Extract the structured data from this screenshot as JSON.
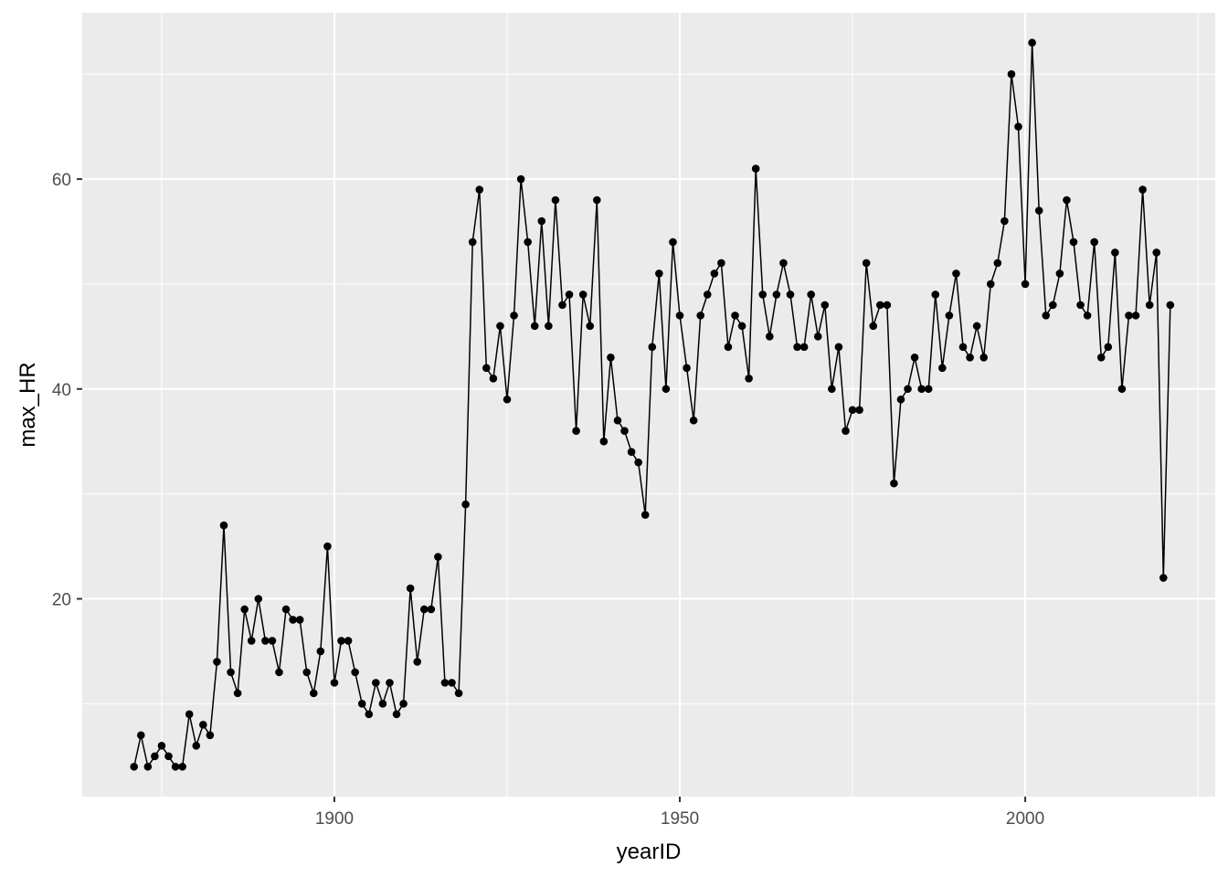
{
  "chart_data": {
    "type": "line",
    "title": "",
    "xlabel": "yearID",
    "ylabel": "max_HR",
    "xlim": [
      1863.5,
      2027.5
    ],
    "ylim": [
      1.15,
      75.85
    ],
    "x_ticks": [
      1900,
      1950,
      2000
    ],
    "x_tick_labels": [
      "1900",
      "1950",
      "2000"
    ],
    "y_ticks": [
      20,
      40,
      60
    ],
    "y_tick_labels": [
      "20",
      "40",
      "60"
    ],
    "grid": true,
    "legend": "none",
    "colors": {
      "panel_background": "#ebebeb",
      "grid_major": "#ffffff",
      "series": "#000000"
    },
    "series": [
      {
        "x": [
          1871,
          1872,
          1873,
          1874,
          1875,
          1876,
          1877,
          1878,
          1879,
          1880,
          1881,
          1882,
          1883,
          1884,
          1885,
          1886,
          1887,
          1888,
          1889,
          1890,
          1891,
          1892,
          1893,
          1894,
          1895,
          1896,
          1897,
          1898,
          1899,
          1900,
          1901,
          1902,
          1903,
          1904,
          1905,
          1906,
          1907,
          1908,
          1909,
          1910,
          1911,
          1912,
          1913,
          1914,
          1915,
          1916,
          1917,
          1918,
          1919,
          1920,
          1921,
          1922,
          1923,
          1924,
          1925,
          1926,
          1927,
          1928,
          1929,
          1930,
          1931,
          1932,
          1933,
          1934,
          1935,
          1936,
          1937,
          1938,
          1939,
          1940,
          1941,
          1942,
          1943,
          1944,
          1945,
          1946,
          1947,
          1948,
          1949,
          1950,
          1951,
          1952,
          1953,
          1954,
          1955,
          1956,
          1957,
          1958,
          1959,
          1960,
          1961,
          1962,
          1963,
          1964,
          1965,
          1966,
          1967,
          1968,
          1969,
          1970,
          1971,
          1972,
          1973,
          1974,
          1975,
          1976,
          1977,
          1978,
          1979,
          1980,
          1981,
          1982,
          1983,
          1984,
          1985,
          1986,
          1987,
          1988,
          1989,
          1990,
          1991,
          1992,
          1993,
          1994,
          1995,
          1996,
          1997,
          1998,
          1999,
          2000,
          2001,
          2002,
          2003,
          2004,
          2005,
          2006,
          2007,
          2008,
          2009,
          2010,
          2011,
          2012,
          2013,
          2014,
          2015,
          2016,
          2017,
          2018,
          2019,
          2020,
          2021
        ],
        "y": [
          4,
          7,
          4,
          5,
          6,
          5,
          4,
          4,
          9,
          6,
          8,
          7,
          14,
          27,
          13,
          11,
          19,
          16,
          20,
          16,
          16,
          13,
          19,
          18,
          18,
          13,
          11,
          15,
          25,
          12,
          16,
          16,
          13,
          10,
          9,
          12,
          10,
          12,
          9,
          10,
          21,
          14,
          19,
          19,
          24,
          12,
          12,
          11,
          29,
          54,
          59,
          42,
          41,
          46,
          39,
          47,
          60,
          54,
          46,
          56,
          46,
          58,
          48,
          49,
          36,
          49,
          46,
          58,
          35,
          43,
          37,
          36,
          34,
          33,
          28,
          44,
          51,
          40,
          54,
          47,
          42,
          37,
          47,
          49,
          51,
          52,
          44,
          47,
          46,
          41,
          61,
          49,
          45,
          49,
          52,
          49,
          44,
          44,
          49,
          45,
          48,
          40,
          44,
          36,
          38,
          38,
          52,
          46,
          48,
          48,
          31,
          39,
          40,
          43,
          40,
          40,
          49,
          42,
          47,
          51,
          44,
          43,
          46,
          43,
          50,
          52,
          56,
          70,
          65,
          50,
          73,
          57,
          47,
          48,
          51,
          58,
          54,
          48,
          47,
          54,
          43,
          44,
          53,
          40,
          47,
          47,
          59,
          48,
          53,
          22,
          48
        ]
      }
    ]
  }
}
